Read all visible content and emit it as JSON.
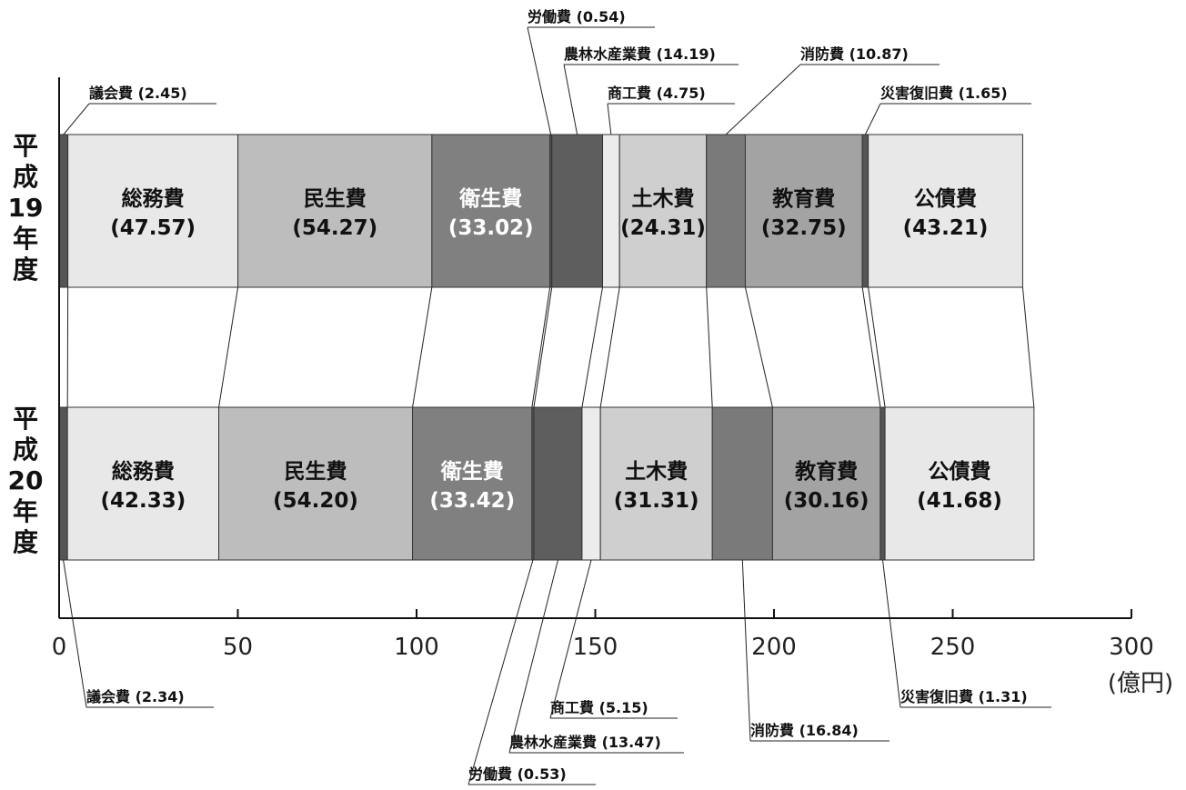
{
  "chart_data": {
    "type": "bar",
    "orientation": "horizontal-stacked",
    "unit": "(億円)",
    "xlim": [
      0,
      300
    ],
    "xticks": [
      0,
      50,
      100,
      150,
      200,
      250,
      300
    ],
    "categories": [
      "議会費",
      "総務費",
      "民生費",
      "衛生費",
      "労働費",
      "農林水産業費",
      "商工費",
      "土木費",
      "消防費",
      "教育費",
      "災害復旧費",
      "公債費"
    ],
    "rows": [
      {
        "label": "平成19年度",
        "label_chars": [
          "平",
          "成",
          "19",
          "年",
          "度"
        ],
        "values": [
          2.45,
          47.57,
          54.27,
          33.02,
          0.54,
          14.19,
          4.75,
          24.31,
          10.87,
          32.75,
          1.65,
          43.21
        ]
      },
      {
        "label": "平成20年度",
        "label_chars": [
          "平",
          "成",
          "20",
          "年",
          "度"
        ],
        "values": [
          2.34,
          42.33,
          54.2,
          33.42,
          0.53,
          13.47,
          5.15,
          31.31,
          16.84,
          30.16,
          1.31,
          41.68
        ]
      }
    ],
    "segment_labels": {
      "rows": [
        [
          null,
          {
            "name": "総務費",
            "value": "(47.57)"
          },
          {
            "name": "民生費",
            "value": "(54.27)"
          },
          {
            "name": "衛生費",
            "value": "(33.02)"
          },
          null,
          null,
          null,
          {
            "name": "土木費",
            "value": "(24.31)"
          },
          null,
          {
            "name": "教育費",
            "value": "(32.75)"
          },
          null,
          {
            "name": "公債費",
            "value": "(43.21)"
          }
        ],
        [
          null,
          {
            "name": "総務費",
            "value": "(42.33)"
          },
          {
            "name": "民生費",
            "value": "(54.20)"
          },
          {
            "name": "衛生費",
            "value": "(33.42)"
          },
          null,
          null,
          null,
          {
            "name": "土木費",
            "value": "(31.31)"
          },
          null,
          {
            "name": "教育費",
            "value": "(30.16)"
          },
          null,
          {
            "name": "公債費",
            "value": "(41.68)"
          }
        ]
      ]
    },
    "callouts": {
      "top": [
        "議会費 (2.45)",
        "労働費 (0.54)",
        "農林水産業費 (14.19)",
        "商工費 (4.75)",
        "消防費 (10.87)",
        "災害復旧費 (1.65)"
      ],
      "bottom": [
        "議会費 (2.34)",
        "労働費 (0.53)",
        "農林水産業費 (13.47)",
        "商工費 (5.15)",
        "消防費 (16.84)",
        "災害復旧費 (1.31)"
      ]
    },
    "colors": [
      "#555555",
      "#e8e8e8",
      "#bdbdbd",
      "#808080",
      "#555555",
      "#5e5e5e",
      "#ececec",
      "#cfcfcf",
      "#7a7a7a",
      "#a3a3a3",
      "#555555",
      "#e8e8e8"
    ],
    "label_colors": [
      "#111111",
      "#111111",
      "#111111",
      "#ffffff",
      "#111111",
      "#111111",
      "#111111",
      "#111111",
      "#111111",
      "#111111",
      "#111111",
      "#111111"
    ]
  }
}
